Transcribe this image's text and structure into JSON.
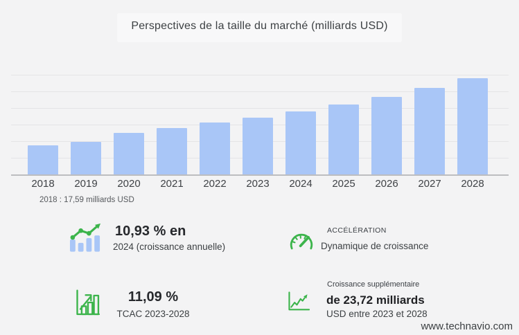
{
  "header": {
    "title": "Perspectives de la taille du marché (milliards USD)"
  },
  "chart_note": "2018 : 17,59 milliards USD",
  "watermark": "www.technavio.com",
  "chart_data": {
    "type": "bar",
    "title": "Perspectives de la taille du marché (milliards USD)",
    "unit": "milliards USD",
    "categories": [
      "2018",
      "2019",
      "2020",
      "2021",
      "2022",
      "2023",
      "2024",
      "2025",
      "2026",
      "2027",
      "2028"
    ],
    "values": [
      17.59,
      19.6,
      25.0,
      28.0,
      31.1,
      34.25,
      37.99,
      42.2,
      46.8,
      51.9,
      57.97
    ],
    "annotation": "2018 : 17,59 milliards USD",
    "xlabel": "",
    "ylabel": "",
    "ylim": [
      0,
      60
    ],
    "grid_step": 10,
    "grid": true,
    "legend": false,
    "y_tick_labels_visible": false,
    "bar_color": "#a9c6f7"
  },
  "stats": [
    {
      "icon": "bar-trend-icon",
      "title": "10,93 % en",
      "subtitle": "2024 (croissance annuelle)"
    },
    {
      "icon": "gauge-icon",
      "title": "ACCÉLÉRATION",
      "subtitle": "Dynamique de croissance"
    },
    {
      "icon": "bar-growth-icon",
      "title": "11,09 %",
      "subtitle": "TCAC 2023-2028"
    },
    {
      "icon": "line-growth-icon",
      "overline": "Croissance supplémentaire",
      "title": "de 23,72 milliards",
      "subtitle": "USD entre 2023 et 2028"
    }
  ],
  "colors": {
    "background": "#f3f3f4",
    "bar_blue": "#a9c6f7",
    "accent_green": "#3cb44b",
    "gridline": "#e4e4e6",
    "axis": "#bcbdc0"
  }
}
